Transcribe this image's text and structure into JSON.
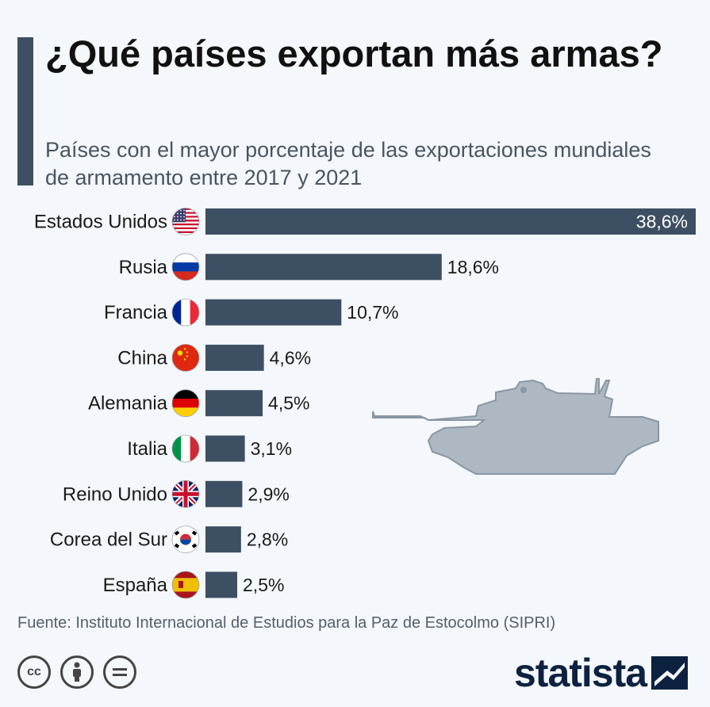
{
  "header": {
    "title": "¿Qué países exportan más armas?",
    "subtitle": "Países con el mayor porcentaje de las exportaciones mundiales de armamento entre 2017 y 2021"
  },
  "footer": {
    "source": "Fuente: Instituto Internacional de Estudios para la Paz de Estocolmo (SIPRI)",
    "logo": "statista",
    "cc_icons": [
      "cc-icon",
      "person-icon",
      "equals-icon"
    ]
  },
  "colors": {
    "bar": "#3d4f63",
    "background": "#f4f7fb",
    "tank": "#aeb8c2"
  },
  "chart_data": {
    "type": "bar",
    "orientation": "horizontal",
    "categories": [
      "Estados Unidos",
      "Rusia",
      "Francia",
      "China",
      "Alemania",
      "Italia",
      "Reino Unido",
      "Corea del Sur",
      "España"
    ],
    "values": [
      38.6,
      18.6,
      10.7,
      4.6,
      4.5,
      3.1,
      2.9,
      2.8,
      2.5
    ],
    "labels": [
      "38,6%",
      "18,6%",
      "10,7%",
      "4,6%",
      "4,5%",
      "3,1%",
      "2,9%",
      "2,8%",
      "2,5%"
    ],
    "flags": [
      "us-flag-icon",
      "russia-flag-icon",
      "france-flag-icon",
      "china-flag-icon",
      "germany-flag-icon",
      "italy-flag-icon",
      "uk-flag-icon",
      "south-korea-flag-icon",
      "spain-flag-icon"
    ],
    "xlim": [
      0,
      38.6
    ],
    "grid": false,
    "legend": "none"
  }
}
